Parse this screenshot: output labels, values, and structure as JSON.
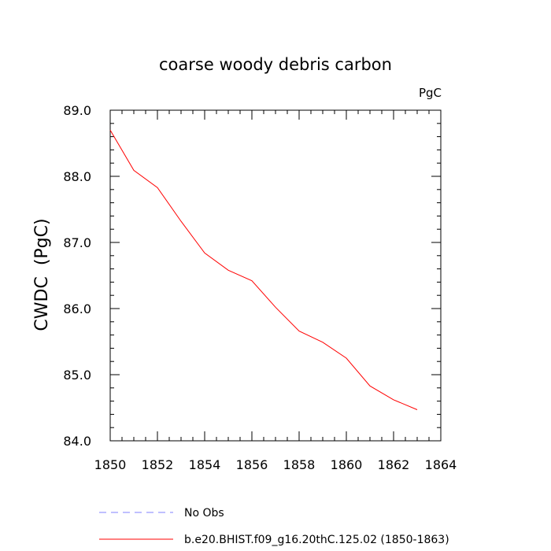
{
  "chart_data": {
    "type": "line",
    "title": "coarse woody debris carbon",
    "units_label": "PgC",
    "ylabel": "CWDC  (PgC)",
    "xlabel": "",
    "xlim": [
      1850,
      1864
    ],
    "ylim": [
      84.0,
      89.0
    ],
    "xticks": [
      1850,
      1852,
      1854,
      1856,
      1858,
      1860,
      1862,
      1864
    ],
    "yticks": [
      "84.0",
      "85.0",
      "86.0",
      "87.0",
      "88.0",
      "89.0"
    ],
    "series": [
      {
        "name": "b.e20.BHIST.f09_g16.20thC.125.02 (1850-1863)",
        "color": "#ff0000",
        "x": [
          1850,
          1851,
          1852,
          1853,
          1854,
          1855,
          1856,
          1857,
          1858,
          1859,
          1860,
          1861,
          1862,
          1863
        ],
        "y": [
          88.7,
          88.09,
          87.83,
          87.32,
          86.84,
          86.58,
          86.42,
          86.02,
          85.66,
          85.49,
          85.25,
          84.83,
          84.62,
          84.47
        ]
      }
    ],
    "legend": [
      {
        "label": "No Obs",
        "style": "dashed",
        "color": "#8080ff"
      },
      {
        "label": "b.e20.BHIST.f09_g16.20thC.125.02 (1850-1863)",
        "style": "solid",
        "color": "#ff0000"
      }
    ],
    "legend_position": "bottom",
    "grid": false
  }
}
